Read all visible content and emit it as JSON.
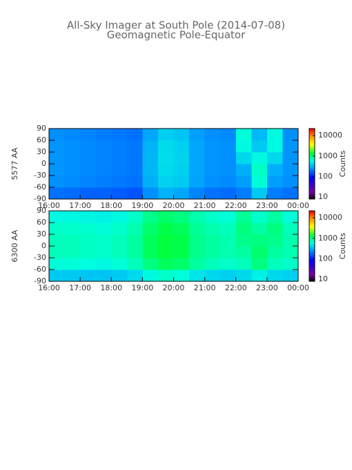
{
  "chart_data": [
    {
      "type": "heatmap",
      "title": "All-Sky Imager at South Pole (2014-07-08)",
      "subtitle": "Geomagnetic Pole-Equator",
      "ylabel": "5577 AA",
      "xlim": [
        16,
        24
      ],
      "xticks": [
        {
          "value": 16,
          "label": "16:00"
        },
        {
          "value": 17,
          "label": "17:00"
        },
        {
          "value": 18,
          "label": "18:00"
        },
        {
          "value": 19,
          "label": "19:00"
        },
        {
          "value": 20,
          "label": "20:00"
        },
        {
          "value": 21,
          "label": "21:00"
        },
        {
          "value": 22,
          "label": "22:00"
        },
        {
          "value": 23,
          "label": "23:00"
        },
        {
          "value": 24,
          "label": "00:00"
        }
      ],
      "ylim": [
        -90,
        90
      ],
      "yticks": [
        90,
        60,
        30,
        0,
        -30,
        -60,
        -90
      ],
      "xbins": [
        16,
        16.5,
        17,
        17.5,
        18,
        18.5,
        19,
        19.5,
        20,
        20.5,
        21,
        21.5,
        22,
        22.5,
        23,
        23.5,
        24
      ],
      "ybins": [
        -90,
        -60,
        -30,
        0,
        30,
        60,
        90
      ],
      "values": [
        [
          200,
          190,
          180,
          180,
          170,
          160,
          250,
          330,
          300,
          230,
          200,
          190,
          220,
          400,
          220,
          200
        ],
        [
          250,
          240,
          230,
          220,
          210,
          200,
          320,
          430,
          400,
          290,
          250,
          240,
          280,
          650,
          280,
          250
        ],
        [
          260,
          250,
          240,
          230,
          220,
          210,
          340,
          460,
          420,
          300,
          260,
          250,
          320,
          700,
          320,
          260
        ],
        [
          260,
          250,
          240,
          230,
          220,
          210,
          340,
          470,
          430,
          300,
          260,
          250,
          450,
          600,
          450,
          260
        ],
        [
          260,
          250,
          240,
          230,
          220,
          210,
          330,
          460,
          420,
          300,
          260,
          250,
          600,
          400,
          600,
          260
        ],
        [
          250,
          240,
          230,
          220,
          210,
          200,
          300,
          420,
          380,
          280,
          250,
          240,
          650,
          350,
          600,
          250
        ]
      ],
      "colorbar": {
        "label": "Counts",
        "scale": "log",
        "lim": [
          8,
          22000
        ],
        "ticks": [
          10,
          100,
          1000,
          10000
        ]
      }
    },
    {
      "type": "heatmap",
      "ylabel": "6300 AA",
      "xlim": [
        16,
        24
      ],
      "xticks": [
        {
          "value": 16,
          "label": "16:00"
        },
        {
          "value": 17,
          "label": "17:00"
        },
        {
          "value": 18,
          "label": "18:00"
        },
        {
          "value": 19,
          "label": "19:00"
        },
        {
          "value": 20,
          "label": "20:00"
        },
        {
          "value": 21,
          "label": "21:00"
        },
        {
          "value": 22,
          "label": "22:00"
        },
        {
          "value": 23,
          "label": "23:00"
        },
        {
          "value": 24,
          "label": "00:00"
        }
      ],
      "ylim": [
        -90,
        90
      ],
      "yticks": [
        90,
        60,
        30,
        0,
        -30,
        -60,
        -90
      ],
      "xbins": [
        16,
        16.5,
        17,
        17.5,
        18,
        18.5,
        19,
        19.5,
        20,
        20.5,
        21,
        21.5,
        22,
        22.5,
        23,
        23.5,
        24
      ],
      "ybins": [
        -90,
        -60,
        -30,
        0,
        30,
        60,
        90
      ],
      "values": [
        [
          400,
          400,
          380,
          380,
          400,
          450,
          600,
          700,
          650,
          500,
          450,
          420,
          450,
          550,
          450,
          420
        ],
        [
          650,
          650,
          620,
          600,
          650,
          750,
          1000,
          1200,
          1100,
          850,
          750,
          700,
          750,
          1000,
          750,
          700
        ],
        [
          750,
          750,
          720,
          700,
          750,
          850,
          1200,
          1400,
          1300,
          950,
          850,
          800,
          850,
          1100,
          850,
          800
        ],
        [
          750,
          750,
          720,
          700,
          750,
          850,
          1200,
          1400,
          1300,
          950,
          850,
          800,
          950,
          1000,
          950,
          800
        ],
        [
          700,
          700,
          680,
          650,
          700,
          800,
          1100,
          1300,
          1200,
          900,
          800,
          750,
          1000,
          850,
          1000,
          750
        ],
        [
          600,
          600,
          580,
          560,
          600,
          700,
          950,
          1100,
          1000,
          800,
          700,
          650,
          900,
          700,
          850,
          650
        ]
      ],
      "colorbar": {
        "label": "Counts",
        "scale": "log",
        "lim": [
          8,
          22000
        ],
        "ticks": [
          10,
          100,
          1000,
          10000
        ]
      }
    }
  ]
}
